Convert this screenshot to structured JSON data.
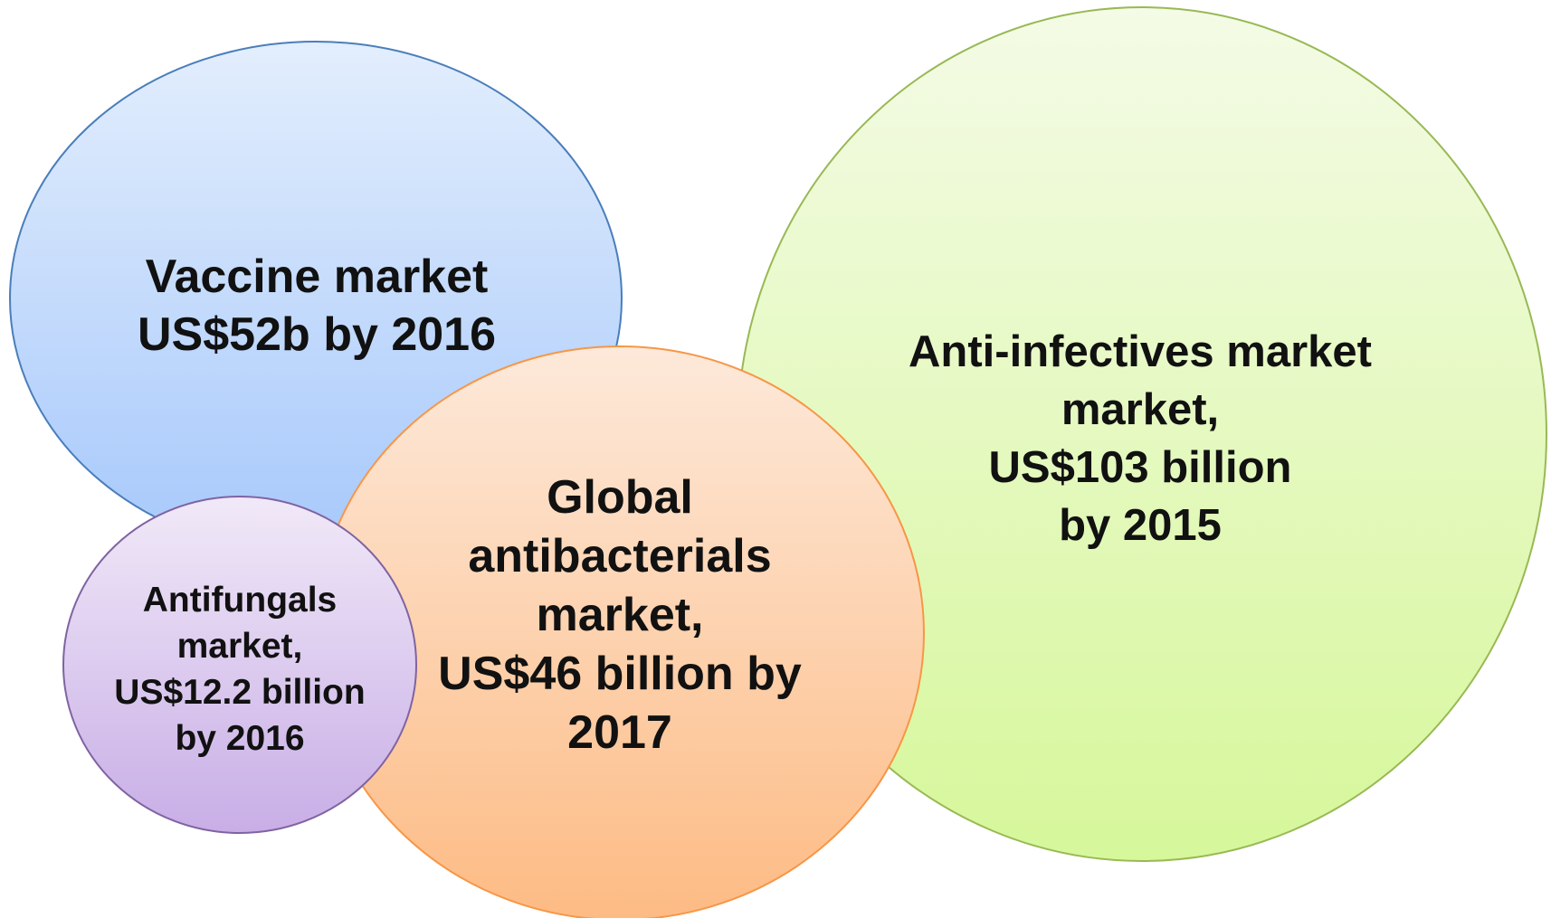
{
  "colors": {
    "vaccine_fill_top": "#e3eefd",
    "vaccine_fill_bottom": "#a6c8fb",
    "vaccine_stroke": "#4a7ebb",
    "anti_infectives_fill_top": "#f4fbe6",
    "anti_infectives_fill_bottom": "#d6f79a",
    "anti_infectives_stroke": "#98b954",
    "antibacterials_fill_top": "#fde9da",
    "antibacterials_fill_bottom": "#fdbb84",
    "antibacterials_stroke": "#f79646",
    "antifungals_fill_top": "#f1e9f8",
    "antifungals_fill_bottom": "#c8aee6",
    "antifungals_stroke": "#7f63a2",
    "text": "#111111"
  },
  "bubbles": {
    "vaccine": {
      "lines": [
        "Vaccine market",
        "US$52b by 2016"
      ]
    },
    "anti_infectives": {
      "lines": [
        "Anti-infectives market",
        "market,",
        "US$103 billion",
        "by 2015"
      ]
    },
    "antibacterials": {
      "lines": [
        "Global",
        "antibacterials",
        "market,",
        "US$46 billion by",
        "2017"
      ]
    },
    "antifungals": {
      "lines": [
        "Antifungals",
        "market,",
        "US$12.2 billion",
        "by 2016"
      ]
    }
  }
}
